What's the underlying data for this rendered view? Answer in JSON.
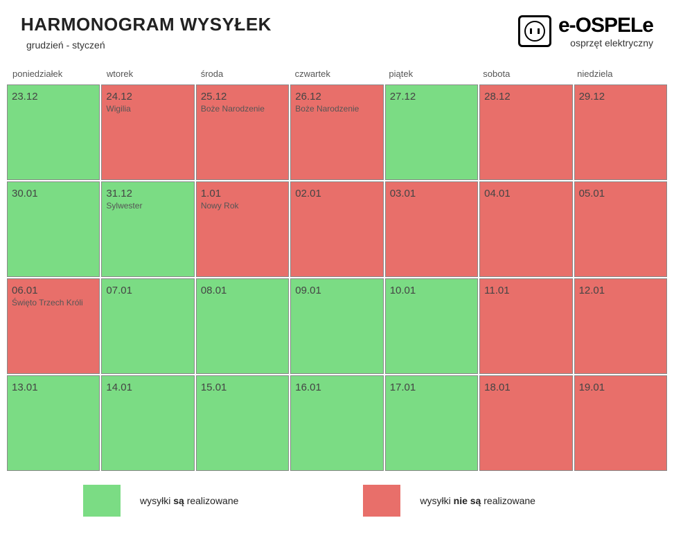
{
  "header": {
    "title": "HARMONOGRAM WYSYŁEK",
    "subtitle": "grudzień - styczeń"
  },
  "logo": {
    "brand": "e-OSPELe",
    "tagline": "osprzęt elektryczny"
  },
  "colors": {
    "shipping": "#7bdc84",
    "no_shipping": "#e86f6a",
    "cell_border": "#888888",
    "text_dark": "#333333",
    "background": "#ffffff"
  },
  "calendar": {
    "day_names": [
      "poniedziałek",
      "wtorek",
      "środa",
      "czwartek",
      "piątek",
      "sobota",
      "niedziela"
    ],
    "weeks": [
      [
        {
          "date": "23.12",
          "label": "",
          "ship": true
        },
        {
          "date": "24.12",
          "label": "Wigilia",
          "ship": false
        },
        {
          "date": "25.12",
          "label": "Boże Narodzenie",
          "ship": false
        },
        {
          "date": "26.12",
          "label": "Boże Narodzenie",
          "ship": false
        },
        {
          "date": "27.12",
          "label": "",
          "ship": true
        },
        {
          "date": "28.12",
          "label": "",
          "ship": false
        },
        {
          "date": "29.12",
          "label": "",
          "ship": false
        }
      ],
      [
        {
          "date": "30.01",
          "label": "",
          "ship": true
        },
        {
          "date": "31.12",
          "label": "Sylwester",
          "ship": true
        },
        {
          "date": "1.01",
          "label": "Nowy Rok",
          "ship": false
        },
        {
          "date": "02.01",
          "label": "",
          "ship": false
        },
        {
          "date": "03.01",
          "label": "",
          "ship": false
        },
        {
          "date": "04.01",
          "label": "",
          "ship": false
        },
        {
          "date": "05.01",
          "label": "",
          "ship": false
        }
      ],
      [
        {
          "date": "06.01",
          "label": "Święto Trzech Króli",
          "ship": false
        },
        {
          "date": "07.01",
          "label": "",
          "ship": true
        },
        {
          "date": "08.01",
          "label": "",
          "ship": true
        },
        {
          "date": "09.01",
          "label": "",
          "ship": true
        },
        {
          "date": "10.01",
          "label": "",
          "ship": true
        },
        {
          "date": "11.01",
          "label": "",
          "ship": false
        },
        {
          "date": "12.01",
          "label": "",
          "ship": false
        }
      ],
      [
        {
          "date": "13.01",
          "label": "",
          "ship": true
        },
        {
          "date": "14.01",
          "label": "",
          "ship": true
        },
        {
          "date": "15.01",
          "label": "",
          "ship": true
        },
        {
          "date": "16.01",
          "label": "",
          "ship": true
        },
        {
          "date": "17.01",
          "label": "",
          "ship": true
        },
        {
          "date": "18.01",
          "label": "",
          "ship": false
        },
        {
          "date": "19.01",
          "label": "",
          "ship": false
        }
      ]
    ]
  },
  "legend": {
    "shipping_prefix": "wysyłki ",
    "shipping_bold": "są",
    "shipping_suffix": " realizowane",
    "no_shipping_prefix": "wysyłki ",
    "no_shipping_bold": "nie są",
    "no_shipping_suffix": " realizowane"
  }
}
